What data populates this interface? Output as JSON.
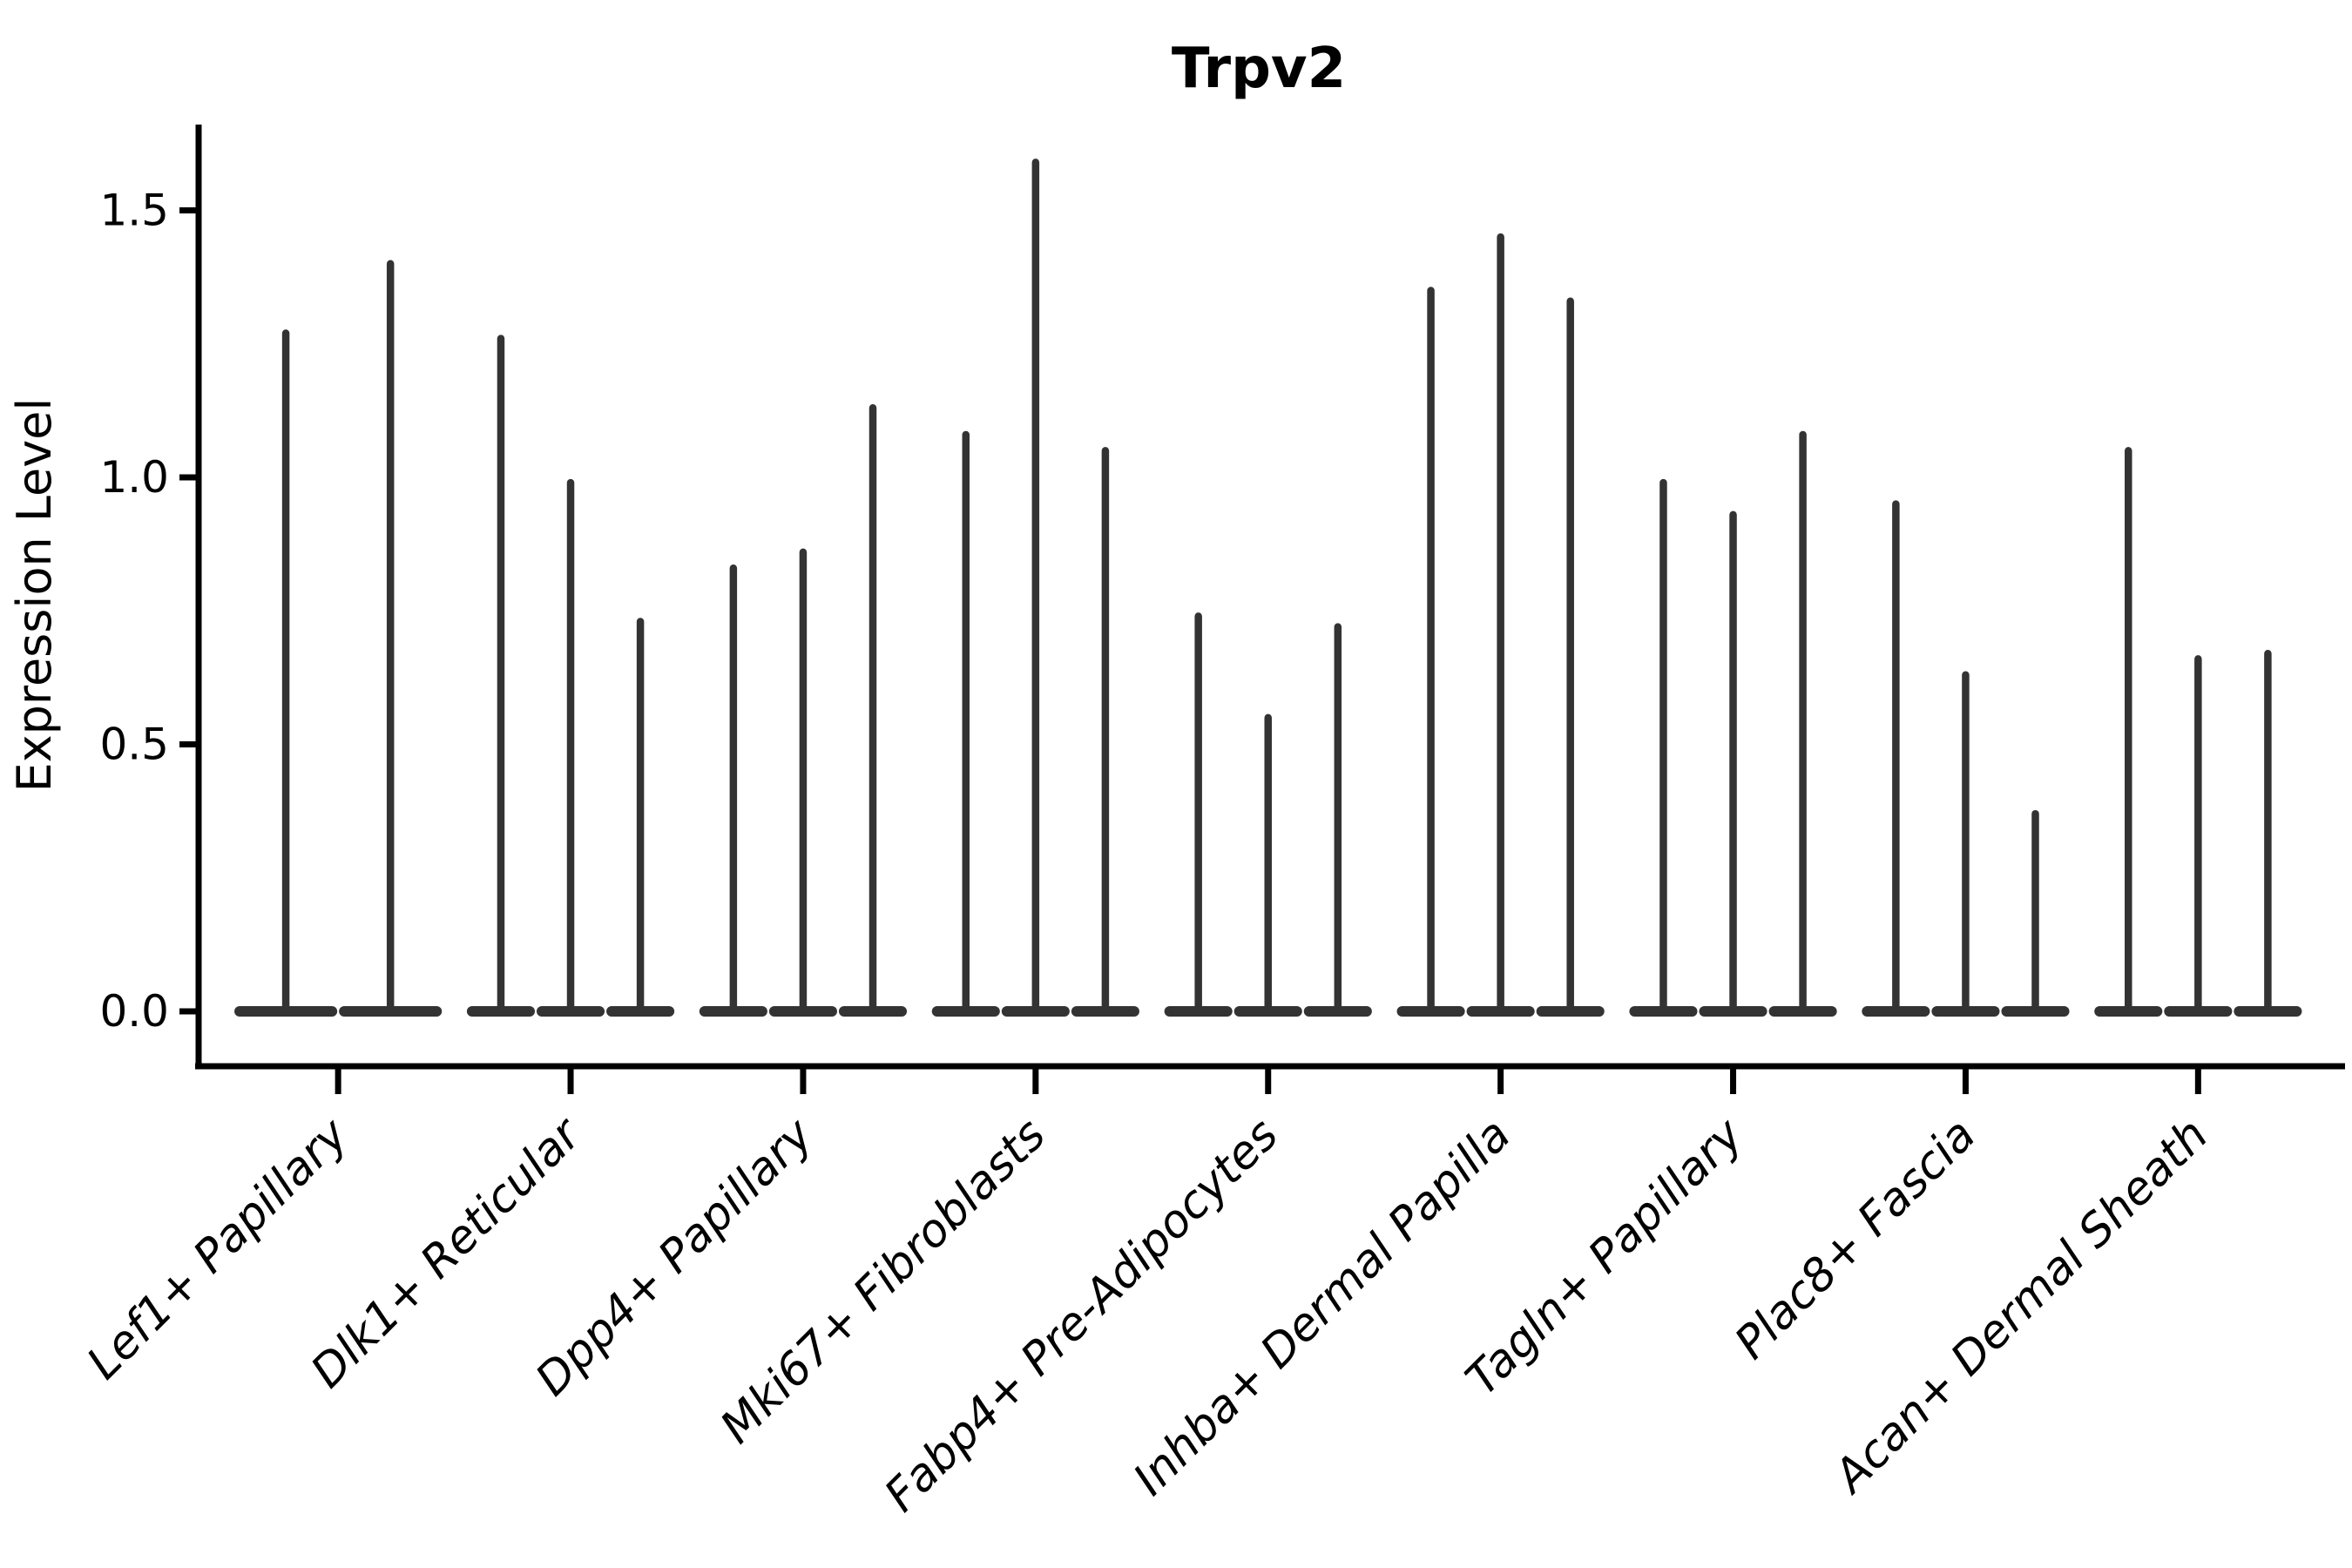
{
  "figure": {
    "title": "Trpv2",
    "ylabel": "Expression Level"
  },
  "chart_data": {
    "type": "violin",
    "title": "Trpv2",
    "xlabel": "",
    "ylabel": "Expression Level",
    "legend": "none",
    "grid": false,
    "background": "#ffffff",
    "ylim": [
      -0.1,
      1.66
    ],
    "y_ticks": [
      {
        "value": 0.0,
        "label": "0.0"
      },
      {
        "value": 0.5,
        "label": "0.5"
      },
      {
        "value": 1.0,
        "label": "1.0"
      },
      {
        "value": 1.5,
        "label": "1.5"
      }
    ],
    "categories": [
      "Lef1+ Papillary",
      "Dlk1+ Reticular",
      "Dpp4+ Papillary",
      "Mki67+ Fibroblasts",
      "Fabp4+ Pre-Adipocytes",
      "Inhba+ Dermal Papilla",
      "Tagln+ Papillary",
      "Plac8+ Fascia",
      "Acan+ Dermal Sheath"
    ],
    "series": [
      {
        "name": "violin_max_expression_per_category",
        "note_shape": "each violin is a wide flat base at 0 with a thin spike up to its max value",
        "values": [
          [
            1.27,
            1.4
          ],
          [
            1.26,
            0.99,
            0.73
          ],
          [
            0.83,
            0.86,
            1.13
          ],
          [
            1.08,
            1.59,
            1.05
          ],
          [
            0.74,
            0.55,
            0.72
          ],
          [
            1.35,
            1.45,
            1.33
          ],
          [
            0.99,
            0.93,
            1.08
          ],
          [
            0.95,
            0.63,
            0.37
          ],
          [
            1.05,
            0.66,
            0.67
          ]
        ]
      }
    ],
    "style": {
      "violin_color": "#333333",
      "axis_color": "#000000",
      "text_color": "#000000",
      "x_tick_label_style": "italic",
      "x_tick_label_rotation_deg": 45,
      "title_weight": "bold",
      "spines": "left and bottom only"
    }
  }
}
